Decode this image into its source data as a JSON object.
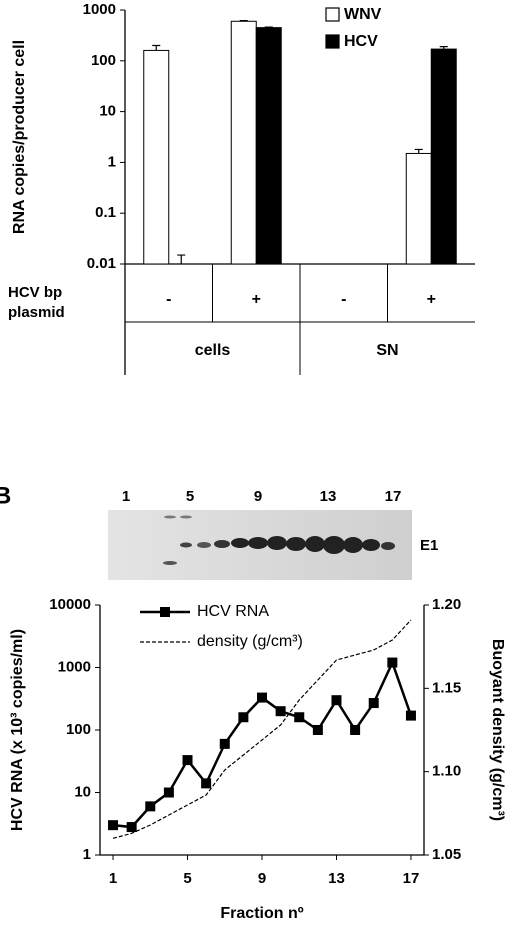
{
  "chart_data": [
    {
      "type": "bar",
      "ylabel": "RNA copies/producer cell",
      "ylog": true,
      "ylim": [
        0.01,
        1000
      ],
      "yticks": [
        0.01,
        0.1,
        1,
        10,
        100,
        1000
      ],
      "categories": [
        "-",
        "+",
        "-",
        "+"
      ],
      "row_label": "HCV bp plasmid",
      "group_labels": [
        "cells",
        "SN"
      ],
      "legend": "top-right",
      "series": [
        {
          "name": "WNV",
          "color": "#ffffff",
          "values": [
            160,
            600,
            0.01,
            1.5
          ],
          "errors": [
            40,
            20,
            null,
            0.3
          ]
        },
        {
          "name": "HCV",
          "color": "#000000",
          "values": [
            0.01,
            450,
            null,
            170
          ],
          "errors": [
            0.005,
            10,
            null,
            20
          ]
        }
      ]
    },
    {
      "type": "line",
      "panel_label": "B",
      "xlabel": "Fraction nº",
      "ylabel": "HCV RNA (x 10³ copies/ml)",
      "y2label": "Buoyant density (g/cm³)",
      "ylog": true,
      "blot": {
        "lane_labels": [
          1,
          5,
          9,
          13,
          17
        ],
        "band_label": "E1"
      },
      "x": [
        1,
        2,
        3,
        4,
        5,
        6,
        7,
        8,
        9,
        10,
        11,
        12,
        13,
        14,
        15,
        16,
        17
      ],
      "xlim": [
        0.3,
        17.7
      ],
      "xticks": [
        1,
        5,
        9,
        13,
        17
      ],
      "ylim": [
        1,
        10000
      ],
      "yticks": [
        1,
        10,
        100,
        1000,
        10000
      ],
      "y2lim": [
        1.05,
        1.2
      ],
      "y2ticks": [
        {
          "value": 1.05,
          "label": "1.05"
        },
        {
          "value": 1.1,
          "label": "1.10"
        },
        {
          "value": 1.15,
          "label": "1.15"
        },
        {
          "value": 1.2,
          "label": "1.20"
        }
      ],
      "series": [
        {
          "name": "HCV RNA",
          "color": "#000000",
          "values": [
            3,
            2.8,
            6,
            10,
            33,
            14,
            60,
            160,
            330,
            200,
            160,
            100,
            300,
            100,
            270,
            1200,
            170
          ]
        },
        {
          "name": "density (g/cm³)",
          "color": "#000000",
          "axis": "y2",
          "dashed": true,
          "values": [
            1.06,
            1.063,
            1.068,
            1.074,
            1.08,
            1.086,
            1.101,
            1.11,
            1.119,
            1.128,
            1.143,
            1.155,
            1.167,
            1.17,
            1.173,
            1.179,
            1.191
          ]
        }
      ]
    }
  ]
}
